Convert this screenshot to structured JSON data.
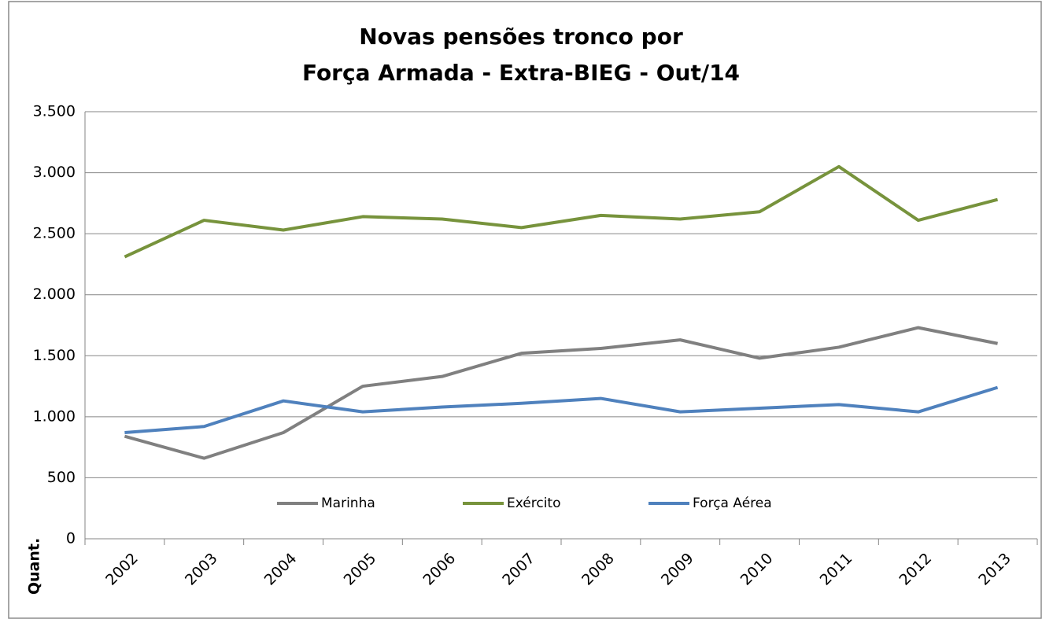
{
  "chart_data": {
    "type": "line",
    "title": [
      "Novas pensões tronco por",
      "Força Armada - Extra-BIEG - Out/14"
    ],
    "y_label": "Quant.",
    "categories": [
      "2002",
      "2003",
      "2004",
      "2005",
      "2006",
      "2007",
      "2008",
      "2009",
      "2010",
      "2011",
      "2012",
      "2013"
    ],
    "series": [
      {
        "name": "Marinha",
        "color": "#808080",
        "values": [
          840,
          660,
          870,
          1250,
          1330,
          1520,
          1560,
          1630,
          1480,
          1570,
          1730,
          1600
        ]
      },
      {
        "name": "Exército",
        "color": "#77933c",
        "values": [
          2310,
          2610,
          2530,
          2640,
          2620,
          2550,
          2650,
          2620,
          2680,
          3050,
          2610,
          2780
        ]
      },
      {
        "name": "Força Aérea",
        "color": "#4f81bd",
        "values": [
          870,
          920,
          1130,
          1040,
          1080,
          1110,
          1150,
          1040,
          1070,
          1100,
          1040,
          1240
        ]
      }
    ],
    "ylim": [
      0,
      3500
    ],
    "yticks": [
      0,
      500,
      {
        "value": 1000,
        "label": "1.000"
      },
      {
        "value": 1500,
        "label": "1.500"
      },
      {
        "value": 2000,
        "label": "2.000"
      },
      {
        "value": 2500,
        "label": "2.500"
      },
      {
        "value": 3000,
        "label": "3.000"
      },
      {
        "value": 3500,
        "label": "3.500"
      }
    ],
    "grid": true,
    "legend": "bottom"
  }
}
